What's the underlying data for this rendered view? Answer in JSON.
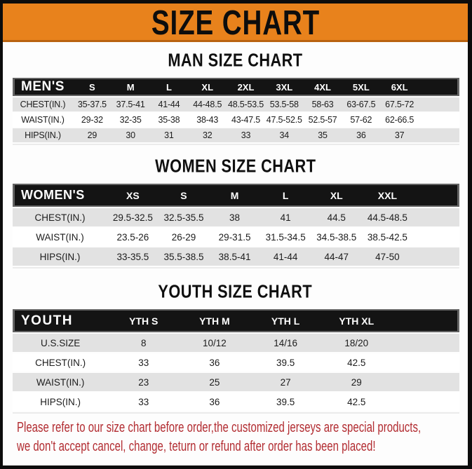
{
  "banner": {
    "title": "SIZE CHART"
  },
  "sections": [
    {
      "title": "MAN SIZE CHART",
      "table": {
        "header": [
          "MEN'S",
          "S",
          "M",
          "L",
          "XL",
          "2XL",
          "3XL",
          "4XL",
          "5XL",
          "6XL"
        ],
        "rows": [
          [
            "CHEST(IN.)",
            "35-37.5",
            "37.5-41",
            "41-44",
            "44-48.5",
            "48.5-53.5",
            "53.5-58",
            "58-63",
            "63-67.5",
            "67.5-72"
          ],
          [
            "WAIST(IN.)",
            "29-32",
            "32-35",
            "35-38",
            "38-43",
            "43-47.5",
            "47.5-52.5",
            "52.5-57",
            "57-62",
            "62-66.5"
          ],
          [
            "HIPS(IN.)",
            "29",
            "30",
            "31",
            "32",
            "33",
            "34",
            "35",
            "36",
            "37"
          ]
        ]
      }
    },
    {
      "title": "WOMEN SIZE CHART",
      "table": {
        "header": [
          "WOMEN'S",
          "XS",
          "S",
          "M",
          "L",
          "XL",
          "XXL"
        ],
        "rows": [
          [
            "CHEST(IN.)",
            "29.5-32.5",
            "32.5-35.5",
            "38",
            "41",
            "44.5",
            "44.5-48.5"
          ],
          [
            "WAIST(IN.)",
            "23.5-26",
            "26-29",
            "29-31.5",
            "31.5-34.5",
            "34.5-38.5",
            "38.5-42.5"
          ],
          [
            "HIPS(IN.)",
            "33-35.5",
            "35.5-38.5",
            "38.5-41",
            "41-44",
            "44-47",
            "47-50"
          ]
        ]
      }
    },
    {
      "title": "YOUTH SIZE CHART",
      "table": {
        "header": [
          "YOUTH",
          "YTH S",
          "YTH M",
          "YTH L",
          "YTH XL"
        ],
        "rows": [
          [
            "U.S.SIZE",
            "8",
            "10/12",
            "14/16",
            "18/20"
          ],
          [
            "CHEST(IN.)",
            "33",
            "36",
            "39.5",
            "42.5"
          ],
          [
            "WAIST(IN.)",
            "23",
            "25",
            "27",
            "29"
          ],
          [
            "HIPS(IN.)",
            "33",
            "36",
            "39.5",
            "42.5"
          ]
        ]
      }
    }
  ],
  "footer": {
    "line1": "Please refer to our size chart before order,the customized jerseys are special products,",
    "line2": "we don't accept cancel, change, teturn or refund after order has been placed!"
  },
  "colors": {
    "banner_orange": "#E8821C",
    "table_header_black": "#141414",
    "row_stripe_gray": "#E2E2E2",
    "footer_red": "#B22C31",
    "frame_black": "#0C0C0C"
  }
}
